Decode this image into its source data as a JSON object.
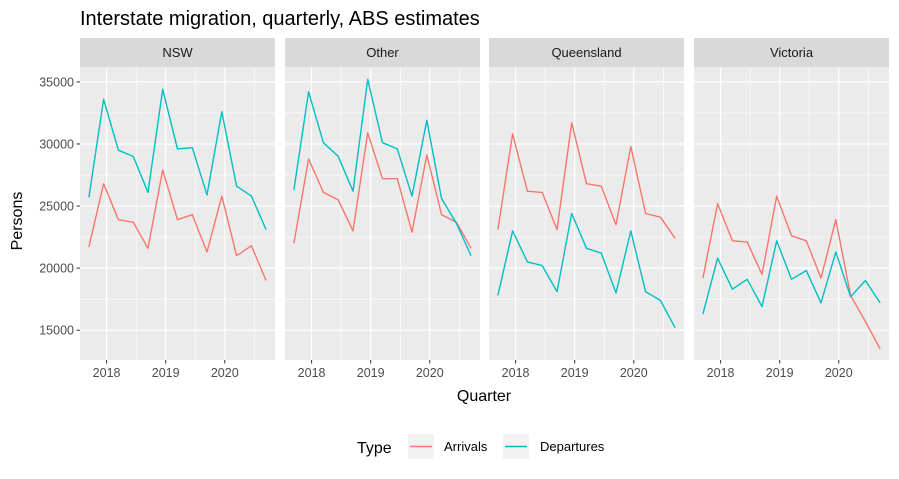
{
  "chart_data": {
    "type": "line",
    "title": "Interstate migration, quarterly, ABS estimates",
    "xlabel": "Quarter",
    "ylabel": "Persons",
    "x": [
      "2017 Q3",
      "2017 Q4",
      "2018 Q1",
      "2018 Q2",
      "2018 Q3",
      "2018 Q4",
      "2019 Q1",
      "2019 Q2",
      "2019 Q3",
      "2019 Q4",
      "2020 Q1",
      "2020 Q2",
      "2020 Q3"
    ],
    "x_numeric": [
      2017.7,
      2017.95,
      2018.2,
      2018.45,
      2018.7,
      2018.95,
      2019.2,
      2019.45,
      2019.7,
      2019.95,
      2020.2,
      2020.45,
      2020.7
    ],
    "xlim": [
      2017.55,
      2020.85
    ],
    "ylim": [
      12600,
      36200
    ],
    "x_ticks": [
      2018,
      2019,
      2020
    ],
    "x_tick_labels": [
      "2018",
      "2019",
      "2020"
    ],
    "y_ticks": [
      15000,
      20000,
      25000,
      30000,
      35000
    ],
    "y_tick_labels": [
      "15000",
      "20000",
      "25000",
      "30000",
      "35000"
    ],
    "grid": true,
    "legend": {
      "title": "Type",
      "position": "bottom",
      "entries": [
        {
          "name": "Arrivals",
          "color": "#F8766D"
        },
        {
          "name": "Departures",
          "color": "#00BFC4"
        }
      ]
    },
    "facets": [
      {
        "name": "NSW",
        "series": [
          {
            "name": "Arrivals",
            "values": [
              21700,
              26800,
              23900,
              23700,
              21600,
              27900,
              23900,
              24300,
              21300,
              25800,
              21000,
              21800,
              19000
            ]
          },
          {
            "name": "Departures",
            "values": [
              25700,
              33600,
              29500,
              29000,
              26100,
              34400,
              29600,
              29700,
              25900,
              32600,
              26600,
              25800,
              23100
            ]
          }
        ]
      },
      {
        "name": "Other",
        "series": [
          {
            "name": "Arrivals",
            "values": [
              22000,
              28800,
              26100,
              25500,
              23000,
              30900,
              27200,
              27200,
              22900,
              29100,
              24300,
              23700,
              21600
            ]
          },
          {
            "name": "Departures",
            "values": [
              26300,
              34200,
              30100,
              29000,
              26200,
              35200,
              30100,
              29600,
              25800,
              31900,
              25600,
              23600,
              21000
            ]
          }
        ]
      },
      {
        "name": "Queensland",
        "series": [
          {
            "name": "Arrivals",
            "values": [
              23100,
              30800,
              26200,
              26100,
              23100,
              31700,
              26800,
              26600,
              23500,
              29800,
              24400,
              24100,
              22400
            ]
          },
          {
            "name": "Departures",
            "values": [
              17800,
              23000,
              20500,
              20200,
              18100,
              24400,
              21600,
              21200,
              18000,
              23000,
              18100,
              17400,
              15200
            ]
          }
        ]
      },
      {
        "name": "Victoria",
        "series": [
          {
            "name": "Arrivals",
            "values": [
              19200,
              25200,
              22200,
              22100,
              19500,
              25800,
              22600,
              22200,
              19200,
              23900,
              17800,
              15700,
              13500
            ]
          },
          {
            "name": "Departures",
            "values": [
              16300,
              20800,
              18300,
              19100,
              16900,
              22200,
              19100,
              19800,
              17200,
              21300,
              17700,
              19000,
              17200
            ]
          }
        ]
      }
    ]
  }
}
